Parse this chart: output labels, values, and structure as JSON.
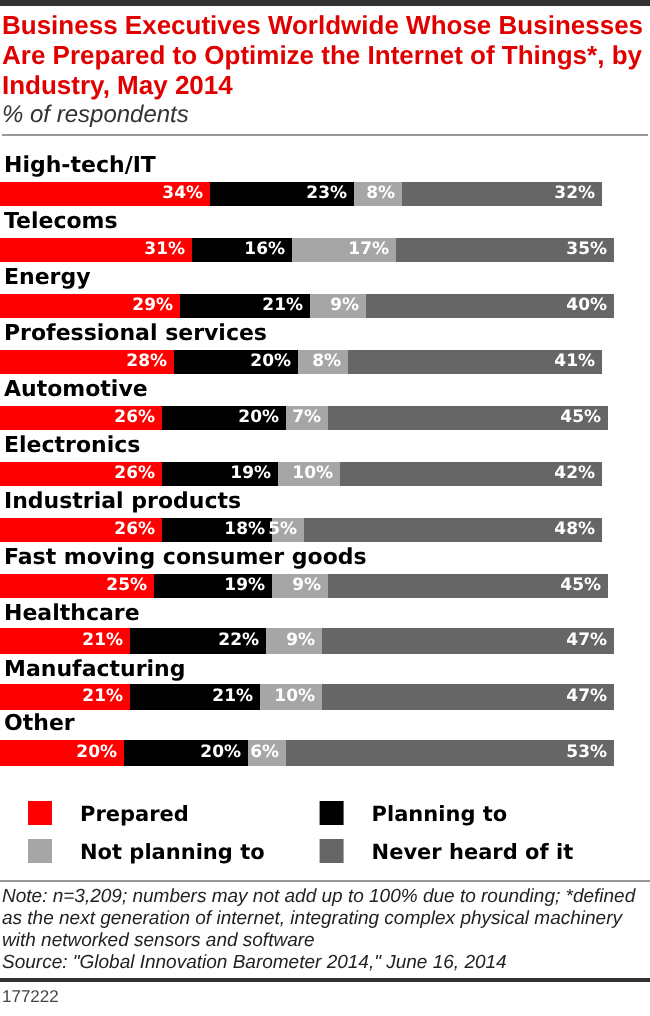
{
  "chart_data": {
    "type": "bar",
    "orientation": "horizontal",
    "stacked": true,
    "title": "Business Executives Worldwide Whose Businesses Are Prepared to Optimize the Internet of Things*, by Industry, May 2014",
    "subtitle": "% of respondents",
    "categories": [
      "High-tech/IT",
      "Telecoms",
      "Energy",
      "Professional services",
      "Automotive",
      "Electronics",
      "Industrial products",
      "Fast moving consumer goods",
      "Healthcare",
      "Manufacturing",
      "Other"
    ],
    "series": [
      {
        "name": "Prepared",
        "color": "#ff0000",
        "values": [
          34,
          31,
          29,
          28,
          26,
          26,
          26,
          25,
          21,
          21,
          20
        ],
        "value_labels": [
          "34%",
          "31%",
          "29%",
          "28%",
          "26%",
          "26%",
          "26%",
          "25%",
          "21%",
          "21%",
          "20%"
        ]
      },
      {
        "name": "Planning to",
        "color": "#000000",
        "values": [
          23,
          16,
          21,
          20,
          20,
          19,
          18,
          19,
          22,
          21,
          20
        ],
        "value_labels": [
          "23%",
          "16%",
          "21%",
          "20%",
          "20%",
          "19%",
          "18%",
          "19%",
          "22%",
          "21%",
          "20%"
        ]
      },
      {
        "name": "Not planning to",
        "color": "#a6a6a6",
        "values": [
          8,
          17,
          9,
          8,
          7,
          10,
          5,
          9,
          9,
          10,
          6
        ],
        "value_labels": [
          "8%",
          "17%",
          "9%",
          "8%",
          "7%",
          "10%",
          "5%",
          "9%",
          "9%",
          "10%",
          "6%"
        ]
      },
      {
        "name": "Never heard of it",
        "color": "#666666",
        "values": [
          32,
          35,
          40,
          41,
          45,
          42,
          48,
          45,
          47,
          47,
          53
        ],
        "value_labels": [
          "32%",
          "35%",
          "40%",
          "41%",
          "45%",
          "42%",
          "48%",
          "45%",
          "47%",
          "47%",
          "53%"
        ]
      }
    ],
    "legend": "bottom",
    "tick_labels": "y",
    "annotations": [
      "Note: n=3,209; numbers may not add up to 100% due to rounding; *defined as the next generation of internet, integrating complex physical machinery with networked sensors and software",
      "Source: \"Global Innovation Barometer 2014,\" June 16, 2014",
      "177222"
    ]
  }
}
